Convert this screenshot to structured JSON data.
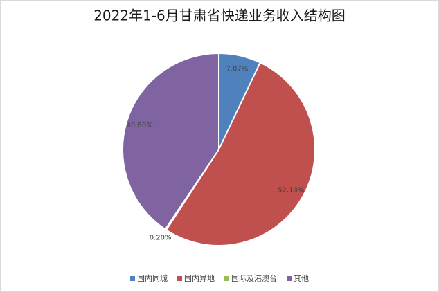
{
  "chart_data": {
    "type": "pie",
    "title": "2022年1-6月甘肃省快递业务收入结构图",
    "categories": [
      "国内同城",
      "国内异地",
      "国际及港澳台",
      "其他"
    ],
    "values": [
      7.07,
      52.13,
      0.2,
      40.6
    ],
    "value_labels": [
      "7.07%",
      "52.13%",
      "0.20%",
      "40.60%"
    ],
    "colors": [
      "#4f81bd",
      "#c0504d",
      "#9bbb59",
      "#8064a2"
    ],
    "legend": "bottom"
  }
}
